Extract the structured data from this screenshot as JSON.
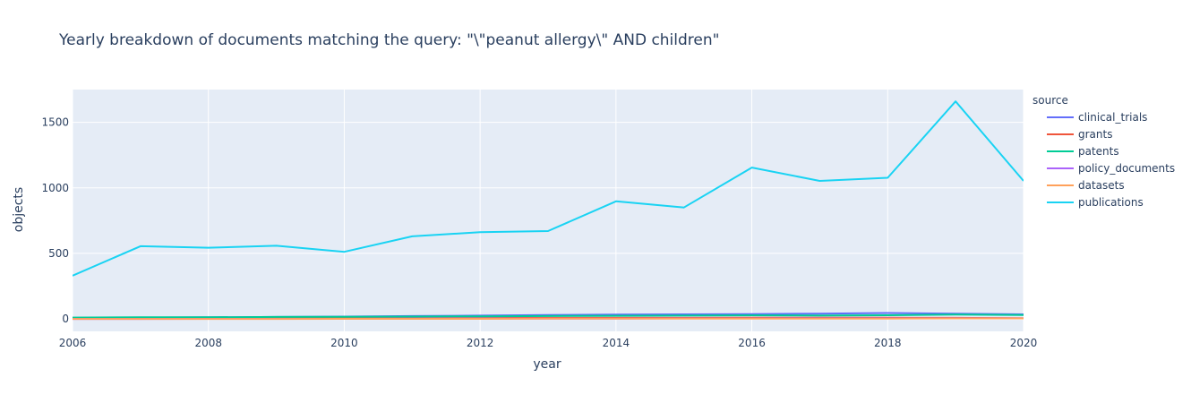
{
  "chart_data": {
    "type": "line",
    "title": "Yearly breakdown of documents matching the query: \"\\\"peanut allergy\\\" AND children\"",
    "xlabel": "year",
    "ylabel": "objects",
    "xlim": [
      2006,
      2020
    ],
    "ylim": [
      -95,
      1750
    ],
    "x_ticks": [
      "2006",
      "2008",
      "2010",
      "2012",
      "2014",
      "2016",
      "2018",
      "2020"
    ],
    "y_ticks": [
      "0",
      "500",
      "1000",
      "1500"
    ],
    "grid": true,
    "legend_title": "source",
    "legend_position": "right",
    "x": [
      2006,
      2007,
      2008,
      2009,
      2010,
      2011,
      2012,
      2013,
      2014,
      2015,
      2016,
      2017,
      2018,
      2019,
      2020
    ],
    "series": [
      {
        "name": "clinical_trials",
        "color": "#636efa",
        "values": [
          8,
          10,
          12,
          15,
          18,
          22,
          25,
          30,
          33,
          35,
          37,
          40,
          45,
          40,
          35
        ]
      },
      {
        "name": "grants",
        "color": "#EF553B",
        "values": [
          2,
          3,
          3,
          4,
          5,
          6,
          7,
          8,
          8,
          8,
          9,
          9,
          9,
          8,
          5
        ]
      },
      {
        "name": "patents",
        "color": "#00cc96",
        "values": [
          10,
          12,
          12,
          15,
          16,
          18,
          20,
          22,
          24,
          25,
          27,
          25,
          28,
          33,
          30
        ]
      },
      {
        "name": "policy_documents",
        "color": "#ab63fa",
        "values": [
          0,
          0,
          1,
          1,
          1,
          2,
          2,
          3,
          3,
          4,
          4,
          5,
          5,
          6,
          5
        ]
      },
      {
        "name": "datasets",
        "color": "#FFA15A",
        "values": [
          0,
          0,
          0,
          0,
          1,
          1,
          1,
          2,
          2,
          2,
          3,
          3,
          3,
          4,
          4
        ]
      },
      {
        "name": "publications",
        "color": "#19d3f3",
        "values": [
          330,
          555,
          543,
          558,
          512,
          630,
          662,
          670,
          897,
          850,
          1155,
          1053,
          1077,
          1660,
          1053
        ]
      }
    ]
  }
}
